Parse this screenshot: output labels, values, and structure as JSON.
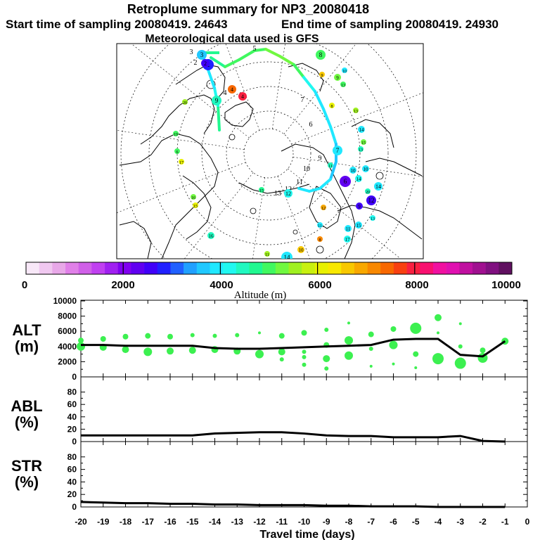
{
  "header": {
    "title": "Retroplume summary for NP3_20080418",
    "start_label": "Start time of sampling 20080419. 24643",
    "end_label": "End time of sampling 20080419. 24930",
    "met_label": "Meteorological data used is GFS"
  },
  "colorbar": {
    "title": "Altitude (m)",
    "tick_labels": [
      "0",
      "2000",
      "4000",
      "6000",
      "8000",
      "10000"
    ],
    "min": 0,
    "max": 10000,
    "colors": [
      "#f8e8f8",
      "#f0c8f0",
      "#e8a8e8",
      "#e080e8",
      "#d060e8",
      "#c040f0",
      "#a020f0",
      "#8000f0",
      "#6000f0",
      "#4000f8",
      "#2020ff",
      "#2060ff",
      "#20a0ff",
      "#20c8ff",
      "#20e8ff",
      "#20f8f0",
      "#20f8c0",
      "#20f890",
      "#40f860",
      "#70f840",
      "#a0f020",
      "#c8f010",
      "#e8f000",
      "#f8e800",
      "#f8c800",
      "#f8a800",
      "#f88800",
      "#f86800",
      "#f84010",
      "#f82040",
      "#f81070",
      "#f010a0",
      "#e010b0",
      "#c010a0",
      "#a01090",
      "#801080",
      "#601060"
    ]
  },
  "map": {
    "track_labels": [
      "1",
      "2",
      "3",
      "4",
      "5",
      "6",
      "7",
      "8",
      "9",
      "10",
      "11",
      "12",
      "13"
    ],
    "trail_labels": [
      "1",
      "2",
      "3",
      "4",
      "5",
      "6",
      "7",
      "8",
      "9",
      "10",
      "11",
      "12",
      "13",
      "14",
      "15",
      "16",
      "17",
      "18",
      "19",
      "20"
    ],
    "trajectory": [
      {
        "lat": 55,
        "lon": 10,
        "alt": 4700
      },
      {
        "lat": 62,
        "lon": 20,
        "alt": 4700
      },
      {
        "lat": 68,
        "lon": 28,
        "alt": 4200
      },
      {
        "lat": 72,
        "lon": 40,
        "alt": 4000
      },
      {
        "lat": 75,
        "lon": 60,
        "alt": 3900
      },
      {
        "lat": 78,
        "lon": 80,
        "alt": 3800
      },
      {
        "lat": 80,
        "lon": 100,
        "alt": 3800
      }
    ]
  },
  "chart_data": [
    {
      "type": "scatter",
      "panel": "ALT",
      "ylabel_line1": "ALT",
      "ylabel_line2": "(m)",
      "ylim": [
        0,
        10000
      ],
      "yticks": [
        "0",
        "2000",
        "4000",
        "6000",
        "8000",
        "10000"
      ],
      "xlim": [
        -20,
        0
      ],
      "line_x": [
        -20,
        -19,
        -18,
        -17,
        -16,
        -15,
        -14,
        -13,
        -12,
        -11,
        -10,
        -9,
        -8,
        -7,
        -6,
        -5,
        -4,
        -3,
        -2,
        -1
      ],
      "line_y": [
        4200,
        4200,
        4100,
        4100,
        4100,
        4100,
        3800,
        3700,
        3700,
        3800,
        3900,
        4000,
        4100,
        4200,
        4900,
        5000,
        5000,
        2900,
        2700,
        4700
      ],
      "points": [
        {
          "x": -20,
          "y": 4000,
          "s": 6
        },
        {
          "x": -20,
          "y": 4800,
          "s": 4
        },
        {
          "x": -19,
          "y": 3900,
          "s": 5
        },
        {
          "x": -19,
          "y": 5000,
          "s": 4
        },
        {
          "x": -18,
          "y": 3600,
          "s": 5
        },
        {
          "x": -18,
          "y": 5300,
          "s": 4
        },
        {
          "x": -17,
          "y": 3300,
          "s": 6
        },
        {
          "x": -17,
          "y": 5400,
          "s": 4
        },
        {
          "x": -16,
          "y": 3400,
          "s": 5
        },
        {
          "x": -16,
          "y": 5300,
          "s": 4
        },
        {
          "x": -15,
          "y": 3500,
          "s": 5
        },
        {
          "x": -15,
          "y": 5500,
          "s": 3
        },
        {
          "x": -14,
          "y": 3600,
          "s": 5
        },
        {
          "x": -14,
          "y": 5400,
          "s": 3
        },
        {
          "x": -13,
          "y": 3400,
          "s": 5
        },
        {
          "x": -13,
          "y": 5500,
          "s": 3
        },
        {
          "x": -12,
          "y": 3000,
          "s": 6
        },
        {
          "x": -12,
          "y": 5800,
          "s": 2
        },
        {
          "x": -11,
          "y": 3300,
          "s": 5
        },
        {
          "x": -11,
          "y": 2300,
          "s": 3
        },
        {
          "x": -11,
          "y": 5400,
          "s": 4
        },
        {
          "x": -10,
          "y": 2600,
          "s": 3
        },
        {
          "x": -10,
          "y": 3300,
          "s": 3
        },
        {
          "x": -10,
          "y": 1600,
          "s": 3
        },
        {
          "x": -10,
          "y": 5800,
          "s": 4
        },
        {
          "x": -9,
          "y": 2400,
          "s": 5
        },
        {
          "x": -9,
          "y": 1100,
          "s": 3
        },
        {
          "x": -9,
          "y": 6200,
          "s": 3
        },
        {
          "x": -9,
          "y": 4200,
          "s": 4
        },
        {
          "x": -8,
          "y": 2800,
          "s": 6
        },
        {
          "x": -8,
          "y": 4800,
          "s": 6
        },
        {
          "x": -8,
          "y": 7100,
          "s": 2
        },
        {
          "x": -7,
          "y": 5600,
          "s": 4
        },
        {
          "x": -7,
          "y": 3700,
          "s": 3
        },
        {
          "x": -7,
          "y": 1400,
          "s": 2
        },
        {
          "x": -6,
          "y": 4200,
          "s": 6
        },
        {
          "x": -6,
          "y": 6300,
          "s": 4
        },
        {
          "x": -6,
          "y": 1700,
          "s": 2
        },
        {
          "x": -5,
          "y": 6400,
          "s": 8
        },
        {
          "x": -5,
          "y": 3000,
          "s": 4
        },
        {
          "x": -5,
          "y": 1200,
          "s": 2
        },
        {
          "x": -4,
          "y": 2400,
          "s": 8
        },
        {
          "x": -4,
          "y": 7800,
          "s": 5
        },
        {
          "x": -4,
          "y": 5800,
          "s": 2
        },
        {
          "x": -3,
          "y": 1800,
          "s": 8
        },
        {
          "x": -3,
          "y": 4000,
          "s": 3
        },
        {
          "x": -3,
          "y": 7000,
          "s": 2
        },
        {
          "x": -2,
          "y": 2500,
          "s": 7
        },
        {
          "x": -2,
          "y": 3500,
          "s": 4
        },
        {
          "x": -1,
          "y": 4700,
          "s": 5
        }
      ]
    },
    {
      "type": "line",
      "panel": "ABL",
      "ylabel_line1": "ABL",
      "ylabel_line2": "(%)",
      "ylim": [
        0,
        90
      ],
      "yticks": [
        "0",
        "20",
        "40",
        "60",
        "80"
      ],
      "xlim": [
        -20,
        0
      ],
      "x": [
        -20,
        -19,
        -18,
        -17,
        -16,
        -15,
        -14,
        -13,
        -12,
        -11,
        -10,
        -9,
        -8,
        -7,
        -6,
        -5,
        -4,
        -3,
        -2,
        -1
      ],
      "y": [
        10,
        10,
        10,
        10,
        10,
        10,
        13,
        14,
        15,
        15,
        13,
        10,
        9,
        9,
        7,
        7,
        7,
        9,
        1,
        0
      ]
    },
    {
      "type": "line",
      "panel": "STR",
      "ylabel_line1": "STR",
      "ylabel_line2": "(%)",
      "ylim": [
        0,
        90
      ],
      "yticks": [
        "0",
        "20",
        "40",
        "60",
        "80"
      ],
      "xlim": [
        -20,
        0
      ],
      "x": [
        -20,
        -19,
        -18,
        -17,
        -16,
        -15,
        -14,
        -13,
        -12,
        -11,
        -10,
        -9,
        -8,
        -7,
        -6,
        -5,
        -4,
        -3,
        -2,
        -1
      ],
      "y": [
        8,
        7,
        6,
        6,
        5,
        5,
        4,
        4,
        3,
        3,
        3,
        2,
        2,
        1,
        1,
        1,
        0,
        0,
        0,
        0
      ],
      "xlabel": "Travel time (days)",
      "xticks": [
        "-20",
        "-19",
        "-18",
        "-17",
        "-16",
        "-15",
        "-14",
        "-13",
        "-12",
        "-11",
        "-10",
        "-9",
        "-8",
        "-7",
        "-6",
        "-5",
        "-4",
        "-3",
        "-2",
        "-1",
        "0"
      ]
    }
  ]
}
